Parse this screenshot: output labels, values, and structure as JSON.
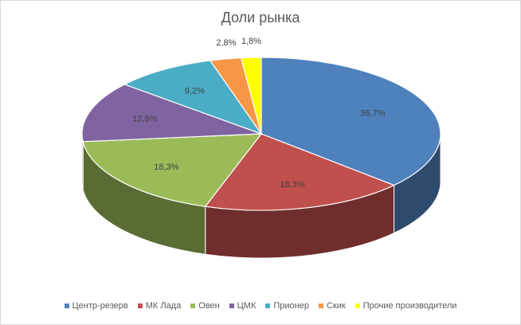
{
  "chart_data": {
    "type": "pie",
    "title": "Доли рынка",
    "categories": [
      "Центр-резерв",
      "МК Лада",
      "Овен",
      "ЦМК",
      "Прионер",
      "Скик",
      "Прочие производители"
    ],
    "values": [
      36.7,
      18.3,
      18.3,
      12.8,
      9.2,
      2.8,
      1.8
    ],
    "labels": [
      "36,7%",
      "18,3%",
      "18,3%",
      "12,8%",
      "9,2%",
      "2,8%",
      "1,8%"
    ],
    "colors": [
      "#4f81bd",
      "#c0504d",
      "#9bbb59",
      "#8064a2",
      "#4bacc6",
      "#f79646",
      "#ffff00"
    ],
    "legend": "bottom"
  }
}
